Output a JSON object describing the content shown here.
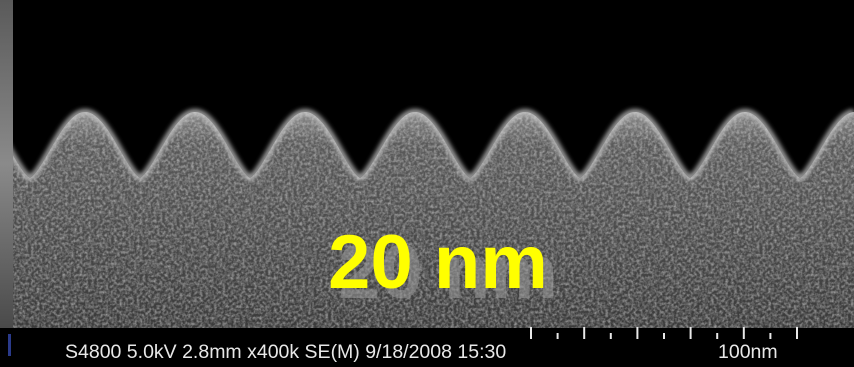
{
  "overlay_label": "20 nm",
  "info_bar": {
    "instrument": "S4800 5.0kV 2.8mm x400k SE(M) 9/18/2008 15:30",
    "scale_label": "100nm"
  }
}
